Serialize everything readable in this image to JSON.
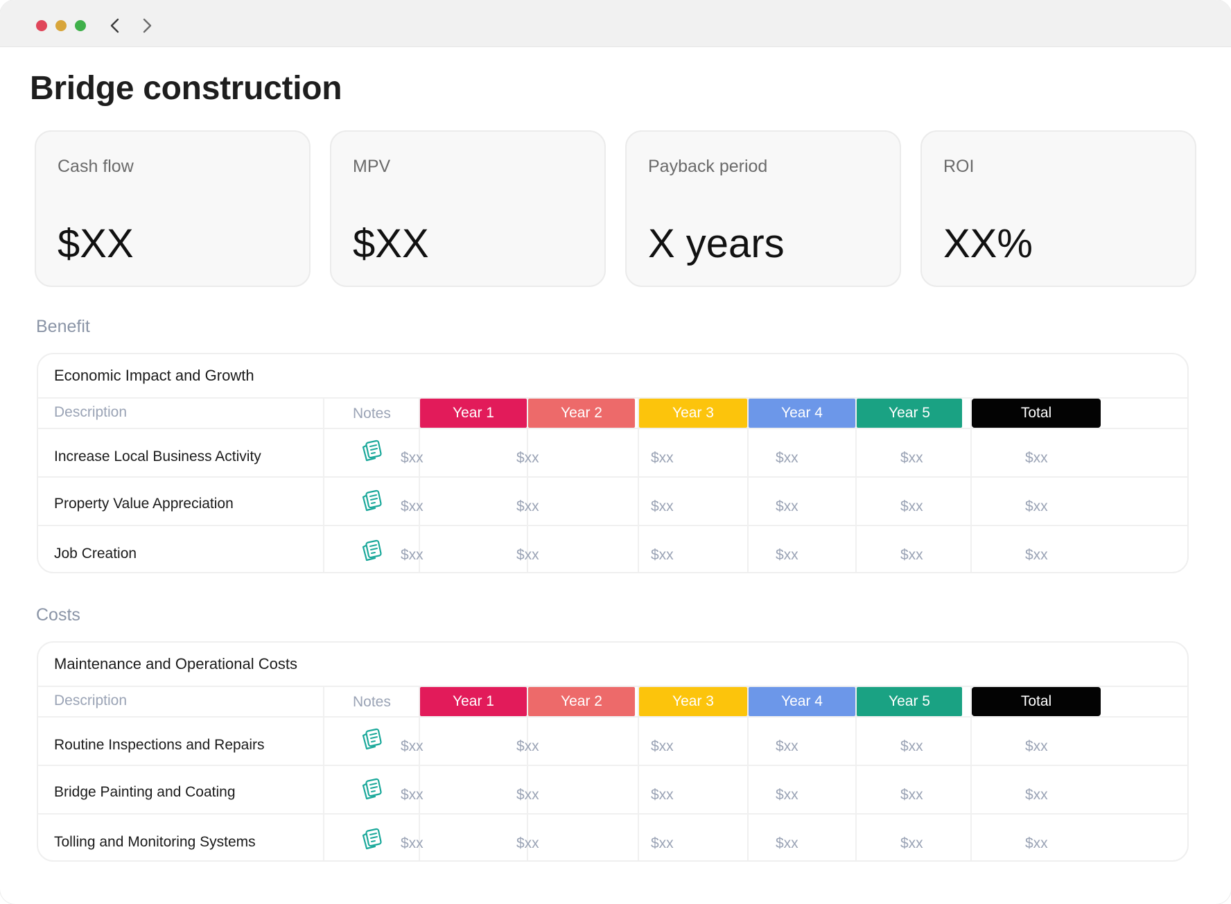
{
  "window": {
    "controls": [
      "close",
      "minimize",
      "maximize"
    ],
    "nav": {
      "back_icon": "chevron-left-icon",
      "forward_icon": "chevron-right-icon"
    }
  },
  "page": {
    "title": "Bridge construction"
  },
  "kpis": [
    {
      "label": "Cash flow",
      "value": "$XX"
    },
    {
      "label": "MPV",
      "value": "$XX"
    },
    {
      "label": "Payback period",
      "value": "X years"
    },
    {
      "label": "ROI",
      "value": "XX%"
    }
  ],
  "colors": {
    "year1": "#e21b5a",
    "year2": "#ed6a6a",
    "year3": "#fcc40c",
    "year4": "#6c97e9",
    "year5": "#1aa283",
    "total": "#030303",
    "note_icon": "#1aa89a"
  },
  "sections": [
    {
      "label": "Benefit",
      "group_title": "Economic Impact and Growth",
      "columns": {
        "description": "Description",
        "notes": "Notes",
        "years": [
          "Year 1",
          "Year 2",
          "Year 3",
          "Year 4",
          "Year 5",
          "Total"
        ]
      },
      "rows": [
        {
          "label": "Increase Local Business Activity",
          "note_icon": "notes-icon",
          "values": [
            "$xx",
            "$xx",
            "$xx",
            "$xx",
            "$xx",
            "$xx"
          ]
        },
        {
          "label": "Property Value Appreciation",
          "note_icon": "notes-icon",
          "values": [
            "$xx",
            "$xx",
            "$xx",
            "$xx",
            "$xx",
            "$xx"
          ]
        },
        {
          "label": "Job Creation",
          "note_icon": "notes-icon",
          "values": [
            "$xx",
            "$xx",
            "$xx",
            "$xx",
            "$xx",
            "$xx"
          ]
        }
      ]
    },
    {
      "label": "Costs",
      "group_title": "Maintenance and Operational Costs",
      "columns": {
        "description": "Description",
        "notes": "Notes",
        "years": [
          "Year 1",
          "Year 2",
          "Year 3",
          "Year 4",
          "Year 5",
          "Total"
        ]
      },
      "rows": [
        {
          "label": "Routine Inspections and Repairs",
          "note_icon": "notes-icon",
          "values": [
            "$xx",
            "$xx",
            "$xx",
            "$xx",
            "$xx",
            "$xx"
          ]
        },
        {
          "label": "Bridge Painting and Coating",
          "note_icon": "notes-icon",
          "values": [
            "$xx",
            "$xx",
            "$xx",
            "$xx",
            "$xx",
            "$xx"
          ]
        },
        {
          "label": "Tolling and Monitoring Systems",
          "note_icon": "notes-icon",
          "values": [
            "$xx",
            "$xx",
            "$xx",
            "$xx",
            "$xx",
            "$xx"
          ]
        }
      ]
    }
  ]
}
